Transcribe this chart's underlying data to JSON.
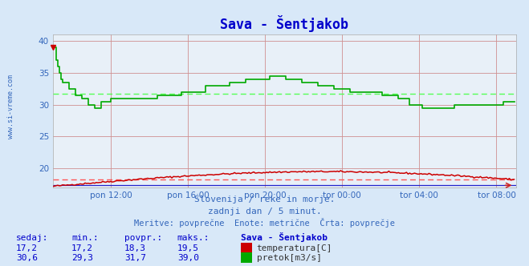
{
  "title": "Sava - Šentjakob",
  "bg_color": "#d8e8f8",
  "plot_bg_color": "#e8f0f8",
  "xlim": [
    0,
    288
  ],
  "ylim": [
    17,
    41
  ],
  "yticks": [
    20,
    25,
    30,
    35,
    40
  ],
  "xtick_labels": [
    "pon 12:00",
    "pon 16:00",
    "pon 20:00",
    "tor 00:00",
    "tor 04:00",
    "tor 08:00"
  ],
  "xtick_positions": [
    36,
    84,
    132,
    180,
    228,
    276
  ],
  "avg_temp": 18.3,
  "avg_flow": 31.7,
  "temp_color": "#cc0000",
  "flow_color": "#00aa00",
  "avg_line_color_temp": "#ff5555",
  "avg_line_color_flow": "#55ff55",
  "subtitle1": "Slovenija / reke in morje.",
  "subtitle2": "zadnji dan / 5 minut.",
  "subtitle3": "Meritve: povprečne  Enote: metrične  Črta: povprečje",
  "table_header": [
    "sedaj:",
    "min.:",
    "povpr.:",
    "maks.:",
    "Sava - Šentjakob"
  ],
  "table_row1": [
    "17,2",
    "17,2",
    "18,3",
    "19,5",
    "temperatura[C]"
  ],
  "table_row2": [
    "30,6",
    "29,3",
    "31,7",
    "39,0",
    "pretok[m3/s]"
  ],
  "watermark": "www.si-vreme.com"
}
